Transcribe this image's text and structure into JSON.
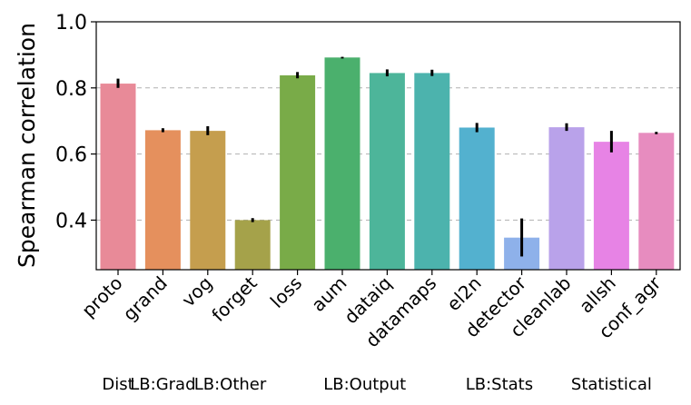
{
  "chart_data": {
    "type": "bar",
    "title": "",
    "xlabel": "",
    "ylabel": "Spearman correlation",
    "ylim": [
      0.25,
      1.0
    ],
    "yticks": [
      "0.4",
      "0.6",
      "0.8",
      "1.0"
    ],
    "grid": "horizontal dashed",
    "categories": [
      "proto",
      "grand",
      "vog",
      "forget",
      "loss",
      "aum",
      "dataiq",
      "datamaps",
      "el2n",
      "detector",
      "cleanlab",
      "allsh",
      "conf_agr"
    ],
    "values": [
      0.813,
      0.672,
      0.67,
      0.4,
      0.838,
      0.892,
      0.845,
      0.845,
      0.68,
      0.347,
      0.681,
      0.637,
      0.664
    ],
    "error_low": [
      0.8,
      0.666,
      0.657,
      0.394,
      0.829,
      0.889,
      0.835,
      0.836,
      0.666,
      0.29,
      0.67,
      0.605,
      0.66
    ],
    "error_high": [
      0.828,
      0.678,
      0.684,
      0.406,
      0.848,
      0.894,
      0.856,
      0.855,
      0.694,
      0.405,
      0.693,
      0.67,
      0.667
    ],
    "colors": [
      "#e88a98",
      "#e5905d",
      "#c59e4e",
      "#a5a24a",
      "#79ab48",
      "#4bb06d",
      "#4db59a",
      "#4cb3ad",
      "#53b1cf",
      "#8eb1ea",
      "#b9a2ea",
      "#e783e5",
      "#e78cbf"
    ],
    "groups": [
      {
        "label": "Dist",
        "members": [
          "proto"
        ]
      },
      {
        "label": "LB:Grad",
        "members": [
          "grand"
        ]
      },
      {
        "label": "LB:Other",
        "members": [
          "vog",
          "forget"
        ]
      },
      {
        "label": "LB:Output",
        "members": [
          "loss",
          "aum",
          "dataiq",
          "datamaps"
        ]
      },
      {
        "label": "LB:Stats",
        "members": [
          "el2n",
          "detector"
        ]
      },
      {
        "label": "Statistical",
        "members": [
          "cleanlab",
          "allsh",
          "conf_agr"
        ]
      }
    ]
  }
}
